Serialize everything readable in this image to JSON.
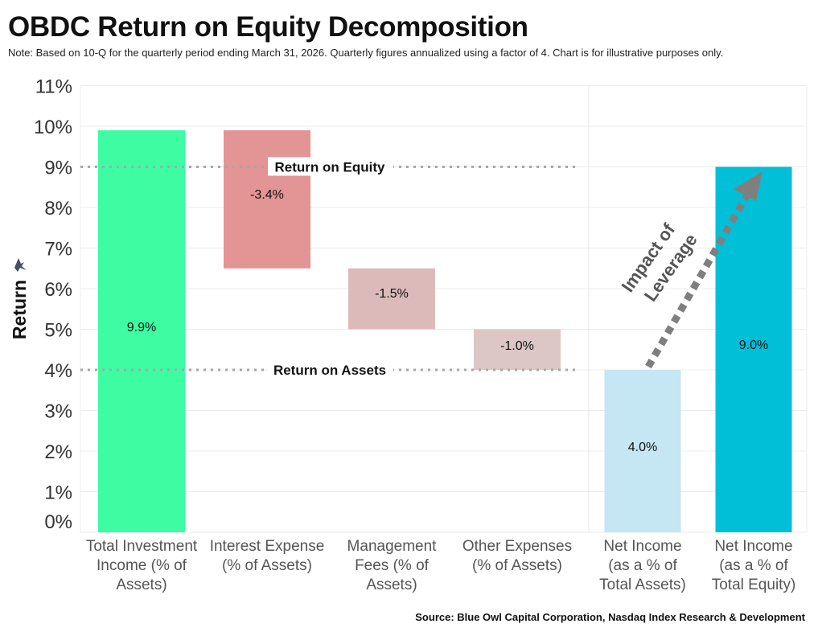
{
  "header": {
    "title": "OBDC Return on Equity Decomposition",
    "note": "Note: Based on 10-Q for the quarterly period ending March 31, 2026. Quarterly figures annualized using a factor of 4. Chart is for illustrative purposes only."
  },
  "footer": {
    "source": "Source: Blue Owl Capital Corporation, Nasdaq Index Research & Development"
  },
  "chart_data": {
    "type": "bar",
    "subtype": "waterfall",
    "ylabel": "Return",
    "ylim": [
      0,
      11
    ],
    "yticks": [
      "0%",
      "1%",
      "2%",
      "3%",
      "4%",
      "5%",
      "6%",
      "7%",
      "8%",
      "9%",
      "10%",
      "11%"
    ],
    "grid": true,
    "categories": [
      [
        "Total Investment",
        "Income (% of",
        "Assets)"
      ],
      [
        "Interest Expense",
        "(% of Assets)"
      ],
      [
        "Management",
        "Fees (% of",
        "Assets)"
      ],
      [
        "Other Expenses",
        "(% of Assets)"
      ],
      [
        "Net Income",
        "(as a % of",
        "Total Assets)"
      ],
      [
        "Net Income",
        "(as a % of",
        "Total Equity)"
      ]
    ],
    "bars": [
      {
        "start": 0,
        "end": 9.9,
        "label": "9.9%",
        "color": "#3dfca2"
      },
      {
        "start": 9.9,
        "end": 6.5,
        "label": "-3.4%",
        "color": "#e39494"
      },
      {
        "start": 6.5,
        "end": 5.0,
        "label": "-1.5%",
        "color": "#dcbaba"
      },
      {
        "start": 5.0,
        "end": 4.0,
        "label": "-1.0%",
        "color": "#dcc6c6"
      },
      {
        "start": 0,
        "end": 4.0,
        "label": "4.0%",
        "color": "#c5e6f3"
      },
      {
        "start": 0,
        "end": 9.0,
        "label": "9.0%",
        "color": "#00bfd6"
      }
    ],
    "reference_lines": [
      {
        "value": 9.0,
        "label": "Return on Equity"
      },
      {
        "value": 4.0,
        "label": "Return on Assets"
      }
    ],
    "annotation": {
      "lines": [
        "Impact of",
        "Leverage"
      ],
      "from": 4.0,
      "to": 9.0
    }
  }
}
